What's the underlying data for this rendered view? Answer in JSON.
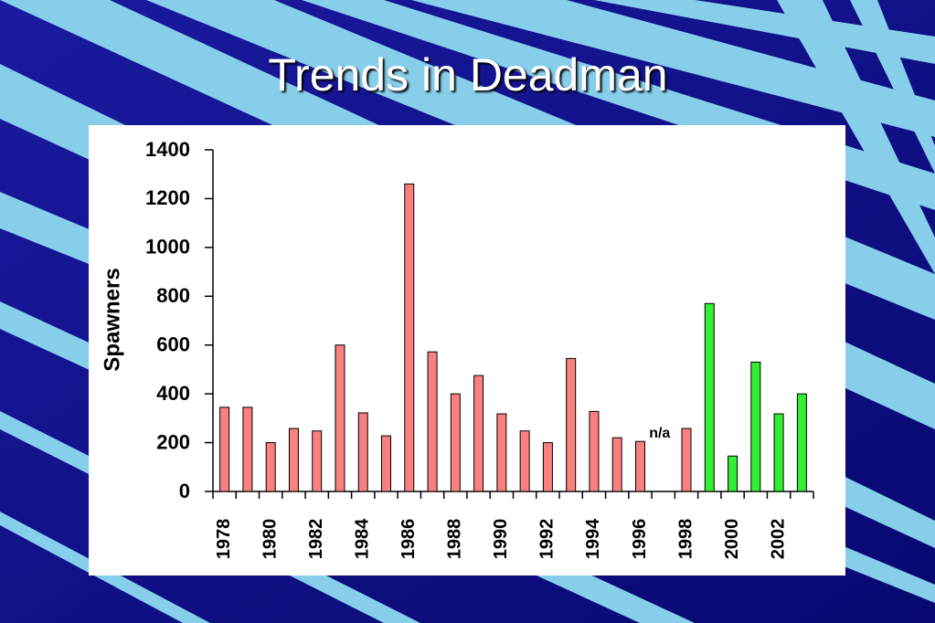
{
  "chart_data": {
    "type": "bar",
    "title": "Trends in Deadman",
    "y_label": "Spawners",
    "categories": [
      "1978",
      null,
      "1980",
      null,
      "1982",
      null,
      "1984",
      null,
      "1986",
      null,
      "1988",
      null,
      "1990",
      null,
      "1992",
      null,
      "1994",
      null,
      "1996",
      null,
      "1998",
      null,
      "2000",
      null,
      "2002",
      null
    ],
    "values": [
      345,
      345,
      200,
      258,
      248,
      600,
      322,
      228,
      1260,
      572,
      400,
      475,
      318,
      248,
      200,
      545,
      328,
      220,
      205,
      null,
      258,
      770,
      145,
      530,
      318,
      400
    ],
    "value_labels": [
      null,
      null,
      null,
      null,
      null,
      null,
      null,
      null,
      null,
      null,
      null,
      null,
      null,
      null,
      null,
      null,
      null,
      null,
      null,
      "n/a",
      null,
      null,
      null,
      null,
      null,
      null
    ],
    "colors": [
      "#f88080",
      "#f88080",
      "#f88080",
      "#f88080",
      "#f88080",
      "#f88080",
      "#f88080",
      "#f88080",
      "#f88080",
      "#f88080",
      "#f88080",
      "#f88080",
      "#f88080",
      "#f88080",
      "#f88080",
      "#f88080",
      "#f88080",
      "#f88080",
      "#f88080",
      "#f88080",
      "#f88080",
      "#33ee33",
      "#33ee33",
      "#33ee33",
      "#33ee33",
      "#33ee33"
    ],
    "ylim": [
      0,
      1400
    ],
    "yticks": [
      0,
      200,
      400,
      600,
      800,
      1000,
      1200,
      1400
    ],
    "grid": false
  }
}
